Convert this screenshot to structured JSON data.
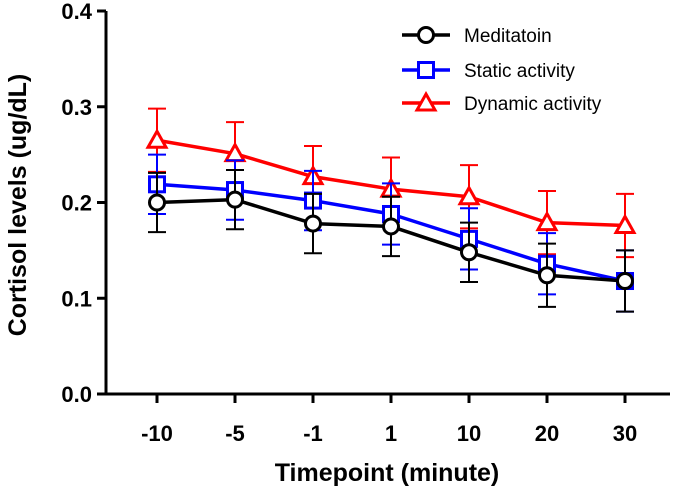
{
  "chart_data": {
    "type": "line",
    "title": "",
    "xlabel": "Timepoint (minute)",
    "ylabel": "Cortisol levels (ug/dL)",
    "categories": [
      "-10",
      "-5",
      "-1",
      "1",
      "10",
      "20",
      "30"
    ],
    "ylim": [
      0,
      0.4
    ],
    "yticks": [
      "0.0",
      "0.1",
      "0.2",
      "0.3",
      "0.4"
    ],
    "legend_position": "top-right",
    "series": [
      {
        "name": "Meditatoin",
        "color": "#000000",
        "marker": "circle",
        "values": [
          0.2,
          0.203,
          0.178,
          0.175,
          0.148,
          0.124,
          0.118
        ],
        "errors": [
          0.031,
          0.031,
          0.031,
          0.031,
          0.031,
          0.033,
          0.032
        ]
      },
      {
        "name": "Static activity",
        "color": "#0000ff",
        "marker": "square",
        "values": [
          0.219,
          0.213,
          0.202,
          0.188,
          0.162,
          0.136,
          0.118
        ],
        "errors": [
          0.031,
          0.031,
          0.031,
          0.032,
          0.032,
          0.032,
          0.032
        ]
      },
      {
        "name": "Dynamic activity",
        "color": "#ff0000",
        "marker": "triangle",
        "values": [
          0.265,
          0.251,
          0.227,
          0.214,
          0.206,
          0.179,
          0.176
        ],
        "errors": [
          0.033,
          0.033,
          0.032,
          0.033,
          0.033,
          0.033,
          0.033
        ]
      }
    ]
  }
}
